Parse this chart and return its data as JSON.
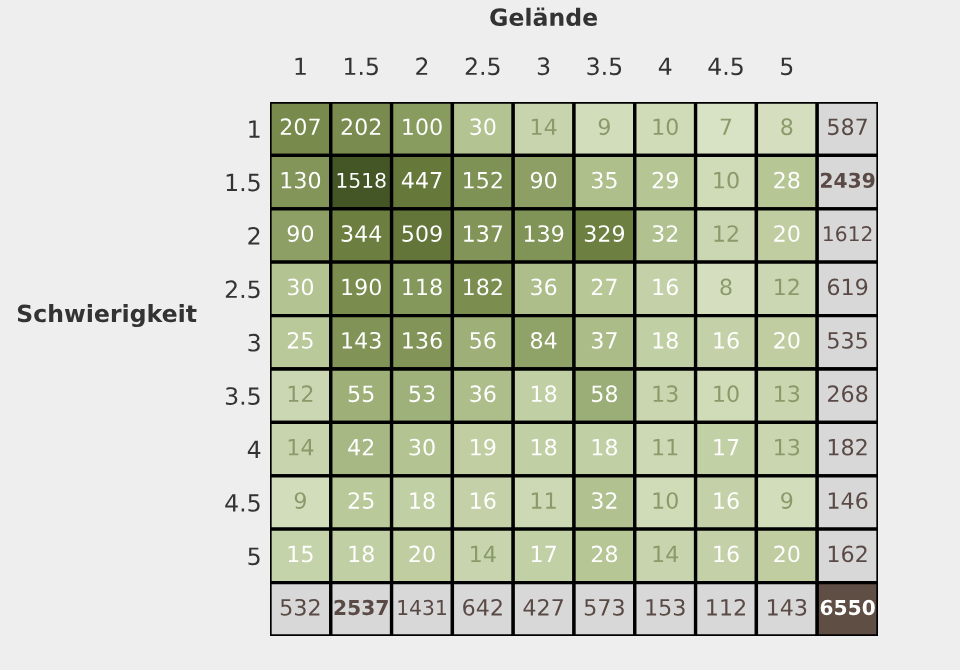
{
  "chart_data": {
    "type": "heatmap",
    "xlabel": "Gelände",
    "ylabel": "Schwierigkeit",
    "categories": [
      "1",
      "1.5",
      "2",
      "2.5",
      "3",
      "3.5",
      "4",
      "4.5",
      "5",
      null
    ],
    "y_categories": [
      "1",
      "1.5",
      "2",
      "2.5",
      "3",
      "3.5",
      "4",
      "4.5",
      "5",
      null
    ],
    "cells": [
      [
        207,
        202,
        100,
        30,
        14,
        9,
        10,
        7,
        8,
        587
      ],
      [
        130,
        1518,
        447,
        152,
        90,
        35,
        29,
        10,
        28,
        2439
      ],
      [
        90,
        344,
        509,
        137,
        139,
        329,
        32,
        12,
        20,
        1612
      ],
      [
        30,
        190,
        118,
        182,
        36,
        27,
        16,
        8,
        12,
        619
      ],
      [
        25,
        143,
        136,
        56,
        84,
        37,
        18,
        16,
        20,
        535
      ],
      [
        12,
        55,
        53,
        36,
        18,
        58,
        13,
        10,
        13,
        268
      ],
      [
        14,
        42,
        30,
        19,
        18,
        18,
        11,
        17,
        13,
        182
      ],
      [
        9,
        25,
        18,
        16,
        11,
        32,
        10,
        16,
        9,
        146
      ],
      [
        15,
        18,
        20,
        14,
        17,
        28,
        14,
        16,
        20,
        162
      ],
      [
        532,
        2537,
        1431,
        642,
        427,
        573,
        153,
        112,
        143,
        6550
      ]
    ],
    "colors": [
      "#d8e2c4",
      "#b7c796",
      "#889b5f",
      "#6a7c3d",
      "#445526",
      "#d8d8d8",
      "#5e4e44"
    ],
    "data_labels": true
  }
}
